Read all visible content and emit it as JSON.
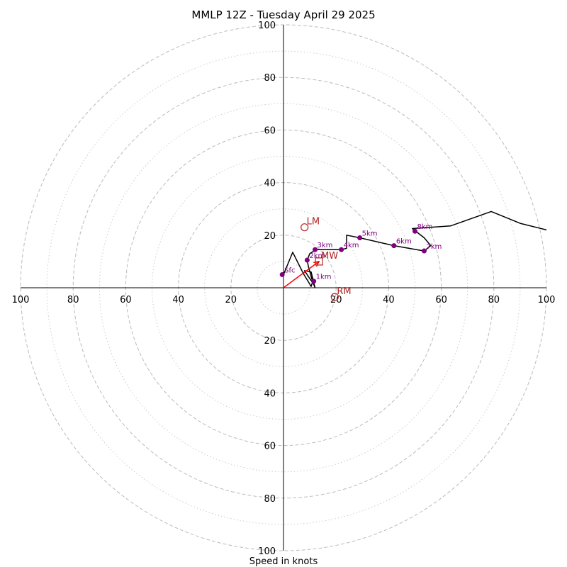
{
  "chart_data": {
    "type": "hodograph",
    "title": "MMLP 12Z - Tuesday April 29 2025",
    "xlabel": "Speed in knots",
    "units": "knots",
    "range": [
      0,
      100
    ],
    "rings_dashed": [
      20,
      40,
      60,
      80,
      100
    ],
    "rings_dotted": [
      10,
      30,
      50,
      70,
      90
    ],
    "tick_labels": [
      "100",
      "80",
      "60",
      "40",
      "20",
      "20",
      "40",
      "60",
      "80",
      "100"
    ],
    "y_tick_labels_top": [
      "20",
      "40",
      "60",
      "80",
      "100"
    ],
    "y_tick_labels_bottom": [
      "20",
      "40",
      "60",
      "80",
      "100"
    ],
    "hodograph_line": [
      [
        0,
        5
      ],
      [
        3.5,
        13.5
      ],
      [
        7.5,
        5.5
      ],
      [
        10.5,
        0.5
      ],
      [
        11,
        2
      ],
      [
        8,
        6.5
      ],
      [
        10.5,
        6
      ],
      [
        12,
        0
      ],
      [
        11,
        2.5
      ],
      [
        9.5,
        8
      ],
      [
        9,
        10.5
      ],
      [
        10,
        13
      ],
      [
        12.5,
        14.5
      ],
      [
        22,
        14.5
      ],
      [
        24,
        15
      ],
      [
        24,
        20
      ],
      [
        29,
        19
      ],
      [
        42,
        16
      ],
      [
        53.5,
        14
      ],
      [
        56,
        16
      ],
      [
        53.5,
        19
      ],
      [
        49,
        22.5
      ],
      [
        63.5,
        23.5
      ],
      [
        79,
        29
      ],
      [
        90,
        24.5
      ],
      [
        100,
        22
      ]
    ],
    "height_markers": [
      {
        "label": "Sfc",
        "u": -0.5,
        "v": 5
      },
      {
        "label": "1km",
        "u": 11.5,
        "v": 2.5
      },
      {
        "label": "2km",
        "u": 9,
        "v": 10.5
      },
      {
        "label": "3km",
        "u": 12,
        "v": 14.5
      },
      {
        "label": "4km",
        "u": 22,
        "v": 14.5
      },
      {
        "label": "5km",
        "u": 29,
        "v": 19
      },
      {
        "label": "6km",
        "u": 42,
        "v": 16
      },
      {
        "label": "7km",
        "u": 53.5,
        "v": 14
      },
      {
        "label": "8km",
        "u": 50,
        "v": 21.5
      }
    ],
    "storm_motions": [
      {
        "label": "LM",
        "u": 8,
        "v": 23,
        "marker": "circle"
      },
      {
        "label": "RM",
        "u": 19.5,
        "v": -3.5,
        "marker": "circle"
      },
      {
        "label": "MW",
        "u": 13.5,
        "v": 10,
        "marker": "square"
      }
    ],
    "mean_wind_vector": {
      "u": 13.5,
      "v": 10
    },
    "colors": {
      "hodograph": "#000000",
      "markers": "#800080",
      "storm_motion": "#b22222",
      "vector": "#ff0000",
      "grid": "#bbbbbb"
    }
  }
}
